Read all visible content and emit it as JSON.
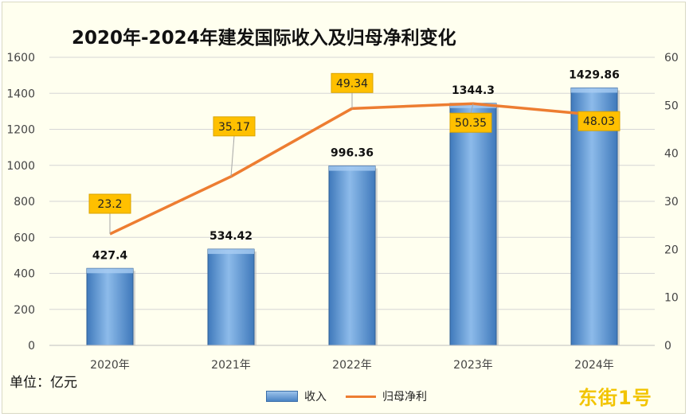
{
  "chart_data": {
    "type": "bar",
    "title": "2020年-2024年建发国际收入及归母净利变化",
    "unit_label": "单位：亿元",
    "categories": [
      "2020年",
      "2021年",
      "2022年",
      "2023年",
      "2024年"
    ],
    "series": [
      {
        "name": "收入",
        "type": "bar",
        "axis": "left",
        "values": [
          427.4,
          534.42,
          996.36,
          1344.3,
          1429.86
        ],
        "labels": [
          "427.4",
          "534.42",
          "996.36",
          "1344.3",
          "1429.86"
        ]
      },
      {
        "name": "归母净利",
        "type": "line",
        "axis": "right",
        "values": [
          23.2,
          35.17,
          49.34,
          50.35,
          48.03
        ],
        "labels": [
          "23.2",
          "35.17",
          "49.34",
          "50.35",
          "48.03"
        ]
      }
    ],
    "ylim_left": [
      0,
      1600
    ],
    "yticks_left": [
      0,
      200,
      400,
      600,
      800,
      1000,
      1200,
      1400,
      1600
    ],
    "ylim_right": [
      0,
      60
    ],
    "yticks_right": [
      0,
      10,
      20,
      30,
      40,
      50,
      60
    ],
    "grid": true,
    "legend": "bottom",
    "colors": {
      "bar": "#5b9bd5",
      "line": "#ed7d31",
      "label_box": "#ffc000"
    }
  },
  "watermark": "东街1号"
}
